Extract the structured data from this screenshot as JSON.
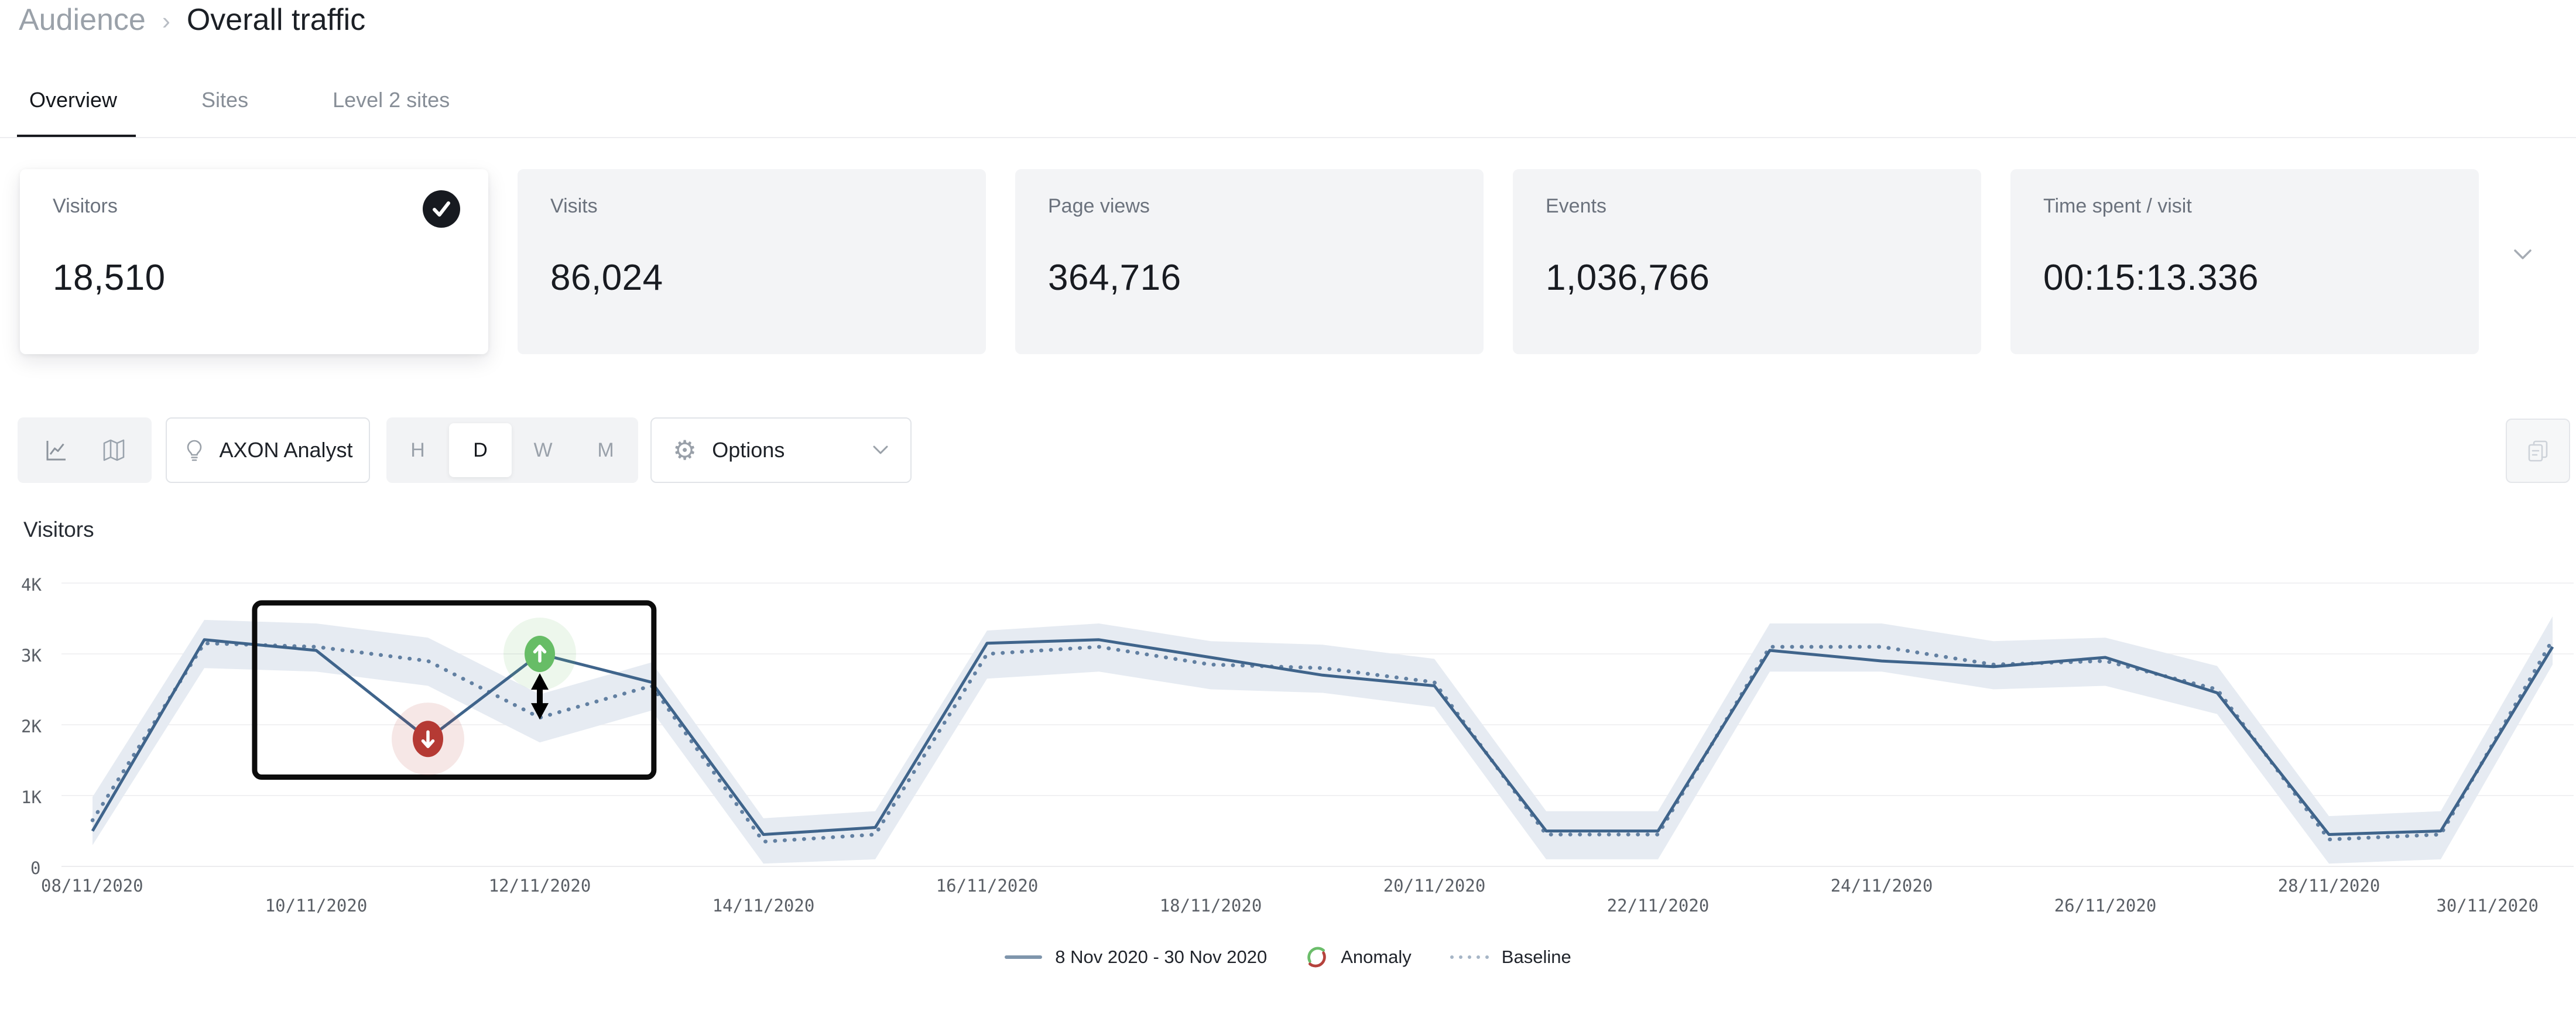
{
  "breadcrumb": {
    "parent": "Audience",
    "separator": "›",
    "current": "Overall traffic"
  },
  "tabs": {
    "overview": "Overview",
    "sites": "Sites",
    "level2": "Level 2 sites"
  },
  "metric_cards": [
    {
      "label": "Visitors",
      "value": "18,510",
      "selected": true
    },
    {
      "label": "Visits",
      "value": "86,024",
      "selected": false
    },
    {
      "label": "Page views",
      "value": "364,716",
      "selected": false
    },
    {
      "label": "Events",
      "value": "1,036,766",
      "selected": false
    },
    {
      "label": "Time spent / visit",
      "value": "00:15:13.336",
      "selected": false
    }
  ],
  "toolbar": {
    "axon_label": "AXON Analyst",
    "granularity": [
      "H",
      "D",
      "W",
      "M"
    ],
    "granularity_selected": "D",
    "options_label": "Options"
  },
  "chart_data": {
    "type": "line",
    "title": "Visitors",
    "x": [
      "08/11/2020",
      "09/11/2020",
      "10/11/2020",
      "11/11/2020",
      "12/11/2020",
      "13/11/2020",
      "14/11/2020",
      "15/11/2020",
      "16/11/2020",
      "17/11/2020",
      "18/11/2020",
      "19/11/2020",
      "20/11/2020",
      "21/11/2020",
      "22/11/2020",
      "23/11/2020",
      "24/11/2020",
      "25/11/2020",
      "26/11/2020",
      "27/11/2020",
      "28/11/2020",
      "29/11/2020",
      "30/11/2020"
    ],
    "x_tick_labels": [
      "08/11/2020",
      "10/11/2020",
      "12/11/2020",
      "14/11/2020",
      "16/11/2020",
      "18/11/2020",
      "20/11/2020",
      "22/11/2020",
      "24/11/2020",
      "26/11/2020",
      "28/11/2020",
      "30/11/2020"
    ],
    "y_ticks": [
      "4K",
      "3K",
      "2K",
      "1K",
      "0"
    ],
    "ylim": [
      0,
      4000
    ],
    "grid": "horizontal",
    "legend_position": "bottom-center",
    "series": [
      {
        "name": "8 Nov 2020 - 30 Nov 2020",
        "style": "solid",
        "color": "#3f648b",
        "values": [
          500,
          3200,
          3050,
          1800,
          3000,
          2600,
          450,
          550,
          3150,
          3200,
          2950,
          2700,
          2550,
          500,
          500,
          3050,
          2900,
          2820,
          2950,
          2450,
          450,
          500,
          3100
        ]
      },
      {
        "name": "Baseline",
        "style": "dotted",
        "color": "#4a6d94",
        "values": [
          650,
          3150,
          3100,
          2900,
          2100,
          2550,
          350,
          450,
          3000,
          3100,
          2850,
          2800,
          2600,
          450,
          450,
          3100,
          3100,
          2850,
          2900,
          2500,
          380,
          450,
          3200
        ]
      }
    ],
    "band": {
      "follows": "Baseline",
      "halfwidth_above": 330,
      "halfwidth_below": 350,
      "color": "#e6ebf2"
    },
    "anomalies": [
      {
        "date": "11/11/2020",
        "value": 1800,
        "direction": "down",
        "color": "#b53a34"
      },
      {
        "date": "12/11/2020",
        "value": 3000,
        "direction": "up",
        "color": "#67bd66"
      }
    ],
    "annotation_box": {
      "x_start_index": 1.45,
      "x_end_index": 5.02,
      "value_top": 3720,
      "value_bottom": 1260,
      "color": "#0c0c0c"
    },
    "delta_arrow": {
      "index": 4,
      "value_from": 2710,
      "value_to": 2090,
      "color": "#000000"
    },
    "legend": {
      "anomaly": "Anomaly",
      "baseline": "Baseline"
    }
  }
}
